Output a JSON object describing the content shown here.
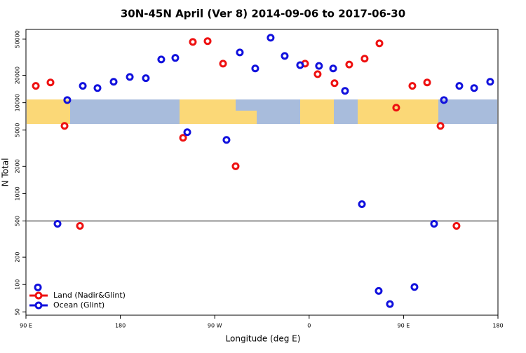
{
  "chart_data": {
    "type": "scatter",
    "title": "30N-45N April (Ver 8)   2014-09-06 to 2017-06-30",
    "x_label": "Longitude (deg E)",
    "y_label": "N Total",
    "log_y": true,
    "reference_line": 500,
    "legend_position": "bottomleft",
    "xlim": [
      90,
      540
    ],
    "ylim": [
      46,
      64000
    ],
    "xticks": [
      {
        "value": 90,
        "label": "90 E"
      },
      180,
      {
        "value": 270,
        "label": "90 W"
      },
      {
        "value": 360,
        "label": "0"
      },
      {
        "value": 450,
        "label": "90 E"
      },
      {
        "value": 540,
        "label": "180"
      }
    ],
    "yticks": [
      50,
      100,
      200,
      500,
      1000,
      2000,
      5000,
      10000,
      20000,
      50000
    ],
    "series": [
      {
        "name": "Land (Nadir&Glint)",
        "color": "#ee1111",
        "x": [
          99.4,
          113.4,
          126.8,
          141.5,
          239.8,
          249.1,
          263.2,
          277.9,
          289.9,
          356.1,
          368.1,
          384.2,
          398.2,
          412.9,
          427.0,
          443.0,
          458.4,
          472.5,
          485.2,
          500.5
        ],
        "values": [
          15300,
          16700,
          5560,
          442,
          4110,
          46600,
          47600,
          26900,
          2000,
          26900,
          20600,
          16400,
          26300,
          30500,
          45000,
          8810,
          15300,
          16700,
          5560,
          442
        ]
      },
      {
        "name": "Ocean (Glint)",
        "color": "#1111dd",
        "x": [
          101.4,
          120.1,
          129.4,
          144.2,
          158.2,
          173.6,
          189.0,
          204.3,
          219.0,
          232.4,
          243.8,
          281.2,
          293.9,
          308.6,
          323.3,
          336.7,
          351.4,
          369.4,
          382.9,
          394.2,
          410.3,
          426.3,
          437.0,
          460.4,
          479.1,
          488.5,
          503.2,
          517.3,
          532.6
        ],
        "values": [
          93,
          466,
          10700,
          15300,
          14500,
          17000,
          19200,
          18600,
          29900,
          31100,
          4740,
          3900,
          35700,
          23800,
          51800,
          32700,
          25900,
          25400,
          23800,
          13500,
          765,
          85,
          61,
          94,
          466,
          10700,
          15300,
          14500,
          17000
        ]
      }
    ]
  }
}
